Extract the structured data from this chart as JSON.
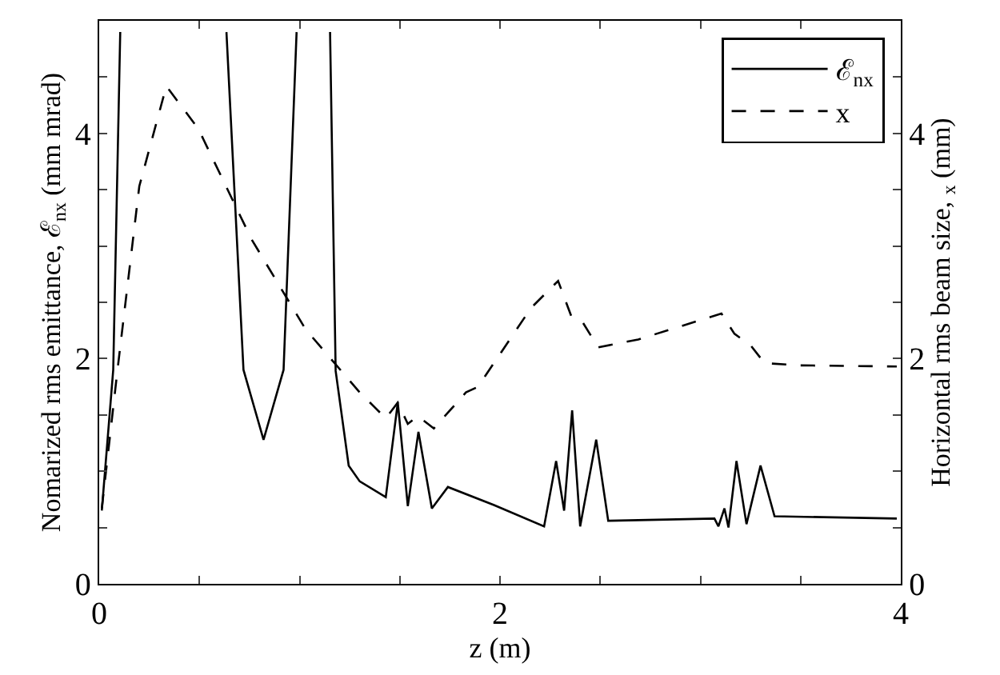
{
  "chart_data": {
    "type": "line",
    "xlabel": "z (m)",
    "ylabel": "Nomarized rms emittance, ℰ$_{nx}$ (mm mrad)",
    "y2label": "Horizontal rms beam size, $_{x}$ (mm)",
    "xlim": [
      0,
      4
    ],
    "xticks": [
      0,
      {
        "value": 0.5,
        "label": null
      },
      {
        "value": 1,
        "label": null
      },
      {
        "value": 1.5,
        "label": null
      },
      2,
      {
        "value": 2.5,
        "label": null
      },
      {
        "value": 3,
        "label": null
      },
      {
        "value": 3.5,
        "label": null
      },
      4
    ],
    "ylim": [
      0,
      5
    ],
    "yticks": [
      0,
      {
        "value": 0.5,
        "label": null
      },
      {
        "value": 1,
        "label": null
      },
      {
        "value": 1.5,
        "label": null
      },
      2,
      {
        "value": 2.5,
        "label": null
      },
      {
        "value": 3,
        "label": null
      },
      {
        "value": 3.5,
        "label": null
      },
      4,
      {
        "value": 4.5,
        "label": null
      }
    ],
    "y2lim": [
      0,
      5
    ],
    "y2ticks": [
      0,
      {
        "value": 0.5,
        "label": null
      },
      {
        "value": 1,
        "label": null
      },
      {
        "value": 1.5,
        "label": null
      },
      2,
      {
        "value": 2.5,
        "label": null
      },
      {
        "value": 3,
        "label": null
      },
      {
        "value": 3.5,
        "label": null
      },
      4,
      {
        "value": 4.5,
        "label": null
      }
    ],
    "legend": "top right",
    "marker": "none",
    "series": [
      {
        "name": "ℰ$_{nx}$",
        "color": "#000000",
        "line_style": "solid",
        "x": [
          0.013,
          0.07,
          0.105,
          0.4,
          0.635,
          0.72,
          0.82,
          0.92,
          0.985,
          1.07,
          1.152,
          1.18,
          1.245,
          1.3,
          1.43,
          1.49,
          1.54,
          1.593,
          1.66,
          1.74,
          1.97,
          2.22,
          2.28,
          2.32,
          2.36,
          2.4,
          2.48,
          2.54,
          3.07,
          3.09,
          3.12,
          3.14,
          3.18,
          3.23,
          3.3,
          3.37,
          3.98
        ],
        "values": [
          0.65,
          1.9,
          4.9,
          null,
          4.9,
          1.9,
          1.28,
          1.9,
          4.9,
          null,
          4.9,
          1.89,
          1.05,
          0.91,
          0.77,
          1.61,
          0.69,
          1.35,
          0.67,
          0.86,
          0.7,
          0.51,
          1.09,
          0.65,
          1.54,
          0.51,
          1.28,
          0.56,
          0.58,
          0.51,
          0.67,
          0.5,
          1.09,
          0.53,
          1.05,
          0.6,
          0.58
        ]
      },
      {
        "name": "x",
        "color": "#000000",
        "line_style": "dashed",
        "axis": "y2",
        "x": [
          0.013,
          0.09,
          0.2,
          0.335,
          0.495,
          0.76,
          1.03,
          1.3,
          1.43,
          1.49,
          1.54,
          1.59,
          1.67,
          1.83,
          1.89,
          2.155,
          2.29,
          2.355,
          2.41,
          2.49,
          2.69,
          3.105,
          3.17,
          3.25,
          3.32,
          3.49,
          3.98
        ],
        "values": [
          0.67,
          1.88,
          3.53,
          4.42,
          4.04,
          3.06,
          2.26,
          1.7,
          1.47,
          1.61,
          1.42,
          1.49,
          1.38,
          1.7,
          1.75,
          2.45,
          2.69,
          2.38,
          2.33,
          2.1,
          2.17,
          2.4,
          2.22,
          2.12,
          1.96,
          1.94,
          1.93
        ]
      }
    ]
  }
}
